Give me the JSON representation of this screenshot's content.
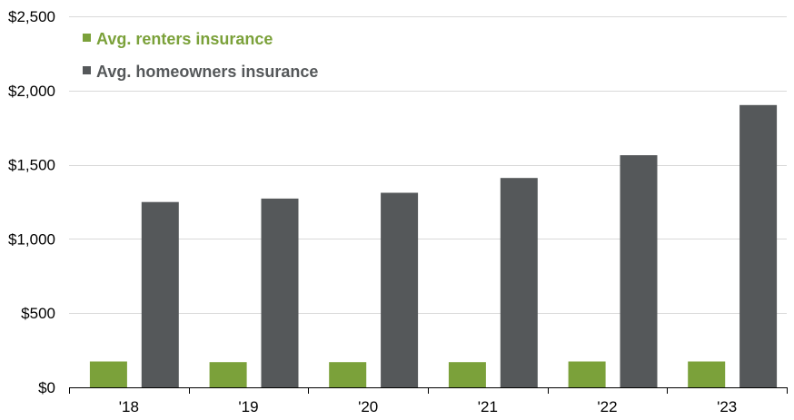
{
  "chart_data": {
    "type": "bar",
    "title": "",
    "xlabel": "",
    "ylabel": "",
    "categories": [
      "'18",
      "'19",
      "'20",
      "'21",
      "'22",
      "'23"
    ],
    "series": [
      {
        "name": "Avg. renters insurance",
        "color": "#7ba13a",
        "values": [
          174,
          170,
          170,
          170,
          174,
          174
        ]
      },
      {
        "name": "Avg. homeowners insurance",
        "color": "#55585a",
        "values": [
          1249,
          1272,
          1311,
          1411,
          1564,
          1902
        ]
      }
    ],
    "ylim": [
      0,
      2500
    ],
    "yticks": [
      0,
      500,
      1000,
      1500,
      2000,
      2500
    ],
    "ytick_labels": [
      "$0",
      "$500",
      "$1,000",
      "$1,500",
      "$2,000",
      "$2,500"
    ],
    "grid": true,
    "legend_position": "top-left"
  }
}
